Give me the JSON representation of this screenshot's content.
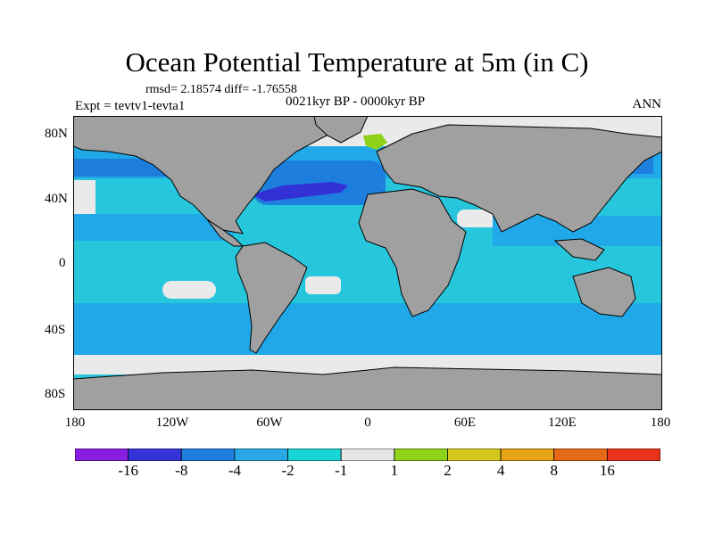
{
  "title": "Ocean Potential Temperature at 5m (in C)",
  "stats_line": "rmsd= 2.18574 diff= -1.76558",
  "experiment": "Expt = tevtv1-tevta1",
  "period": "0021kyr BP - 0000kyr BP",
  "season": "ANN",
  "lat_labels": [
    "80N",
    "40N",
    "0",
    "40S",
    "80S"
  ],
  "lon_labels": [
    "180",
    "120W",
    "60W",
    "0",
    "60E",
    "120E",
    "180"
  ],
  "colorbar": {
    "labels": [
      "-16",
      "-8",
      "-4",
      "-2",
      "-1",
      "1",
      "2",
      "4",
      "8",
      "16"
    ],
    "colors": [
      "#8a1ee0",
      "#3434d8",
      "#1f7ee0",
      "#2aa8e6",
      "#19d6d6",
      "#e6e6e6",
      "#8fd21a",
      "#d6c61e",
      "#e6a416",
      "#e66a16",
      "#e8321a"
    ]
  },
  "map_colors": {
    "land": "#a0a0a0",
    "ocean_base": "#26c6dc",
    "ice_white": "#eaeaea",
    "medium_blue": "#20a8e8",
    "blue": "#1e7ede",
    "deep_blue": "#3131d6",
    "green": "#8fd21a"
  }
}
